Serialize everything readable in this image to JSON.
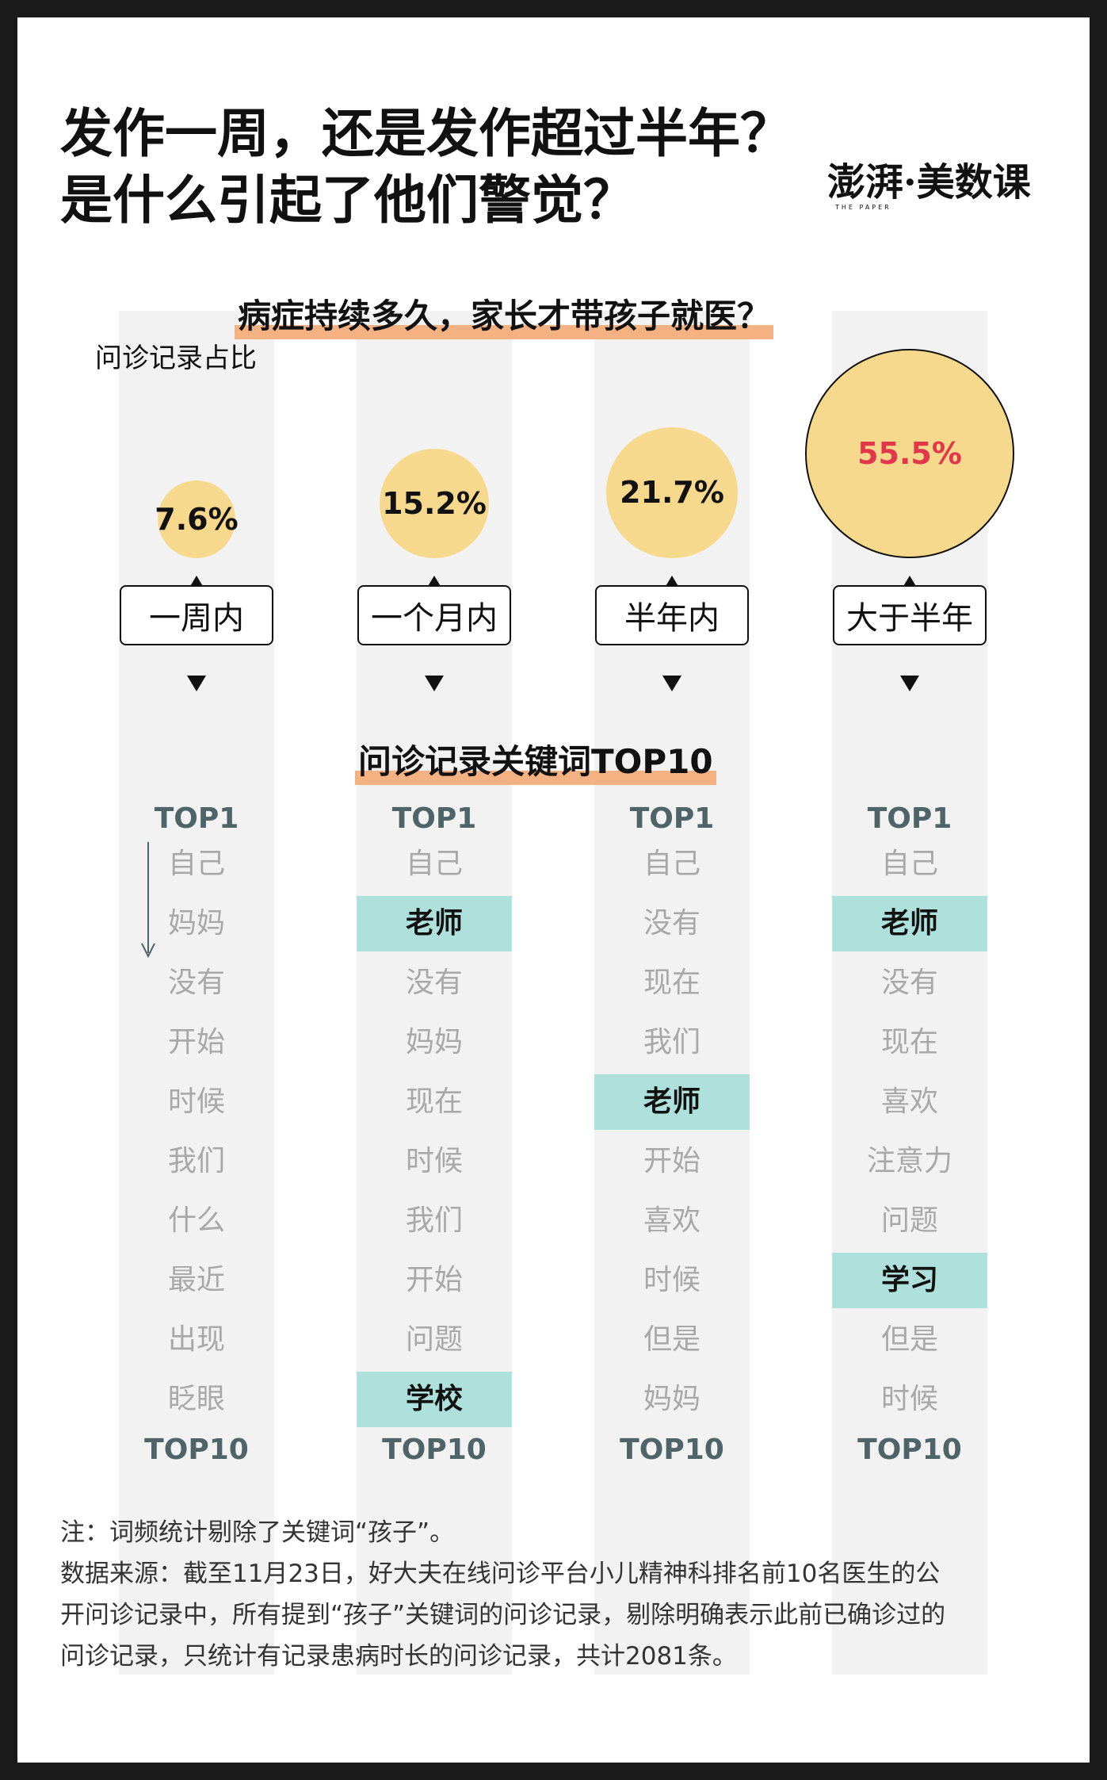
{
  "title": {
    "line1": "发作一周，还是发作超过半年？",
    "line2": "是什么引起了他们警觉？"
  },
  "logo": {
    "main": "澎湃·美数课",
    "sub": "THE PAPER"
  },
  "chart_data": {
    "type": "bubble",
    "title": "病症持续多久，家长才带孩子就医？",
    "ylabel": "问诊记录占比",
    "categories": [
      "一周内",
      "一个月内",
      "半年内",
      "大于半年"
    ],
    "values": [
      7.6,
      15.2,
      21.7,
      55.5
    ],
    "value_labels": [
      "7.6%",
      "15.2%",
      "21.7%",
      "55.5%"
    ],
    "bubble_color": "#f6d98c",
    "highlight_label_color": "#e2374a",
    "keywords_title": "问诊记录关键词TOP10",
    "rank_top_label": "TOP1",
    "rank_bottom_label": "TOP10",
    "keyword_columns": [
      {
        "words": [
          "自己",
          "妈妈",
          "没有",
          "开始",
          "时候",
          "我们",
          "什么",
          "最近",
          "出现",
          "眨眼"
        ],
        "highlight": []
      },
      {
        "words": [
          "自己",
          "老师",
          "没有",
          "妈妈",
          "现在",
          "时候",
          "我们",
          "开始",
          "问题",
          "学校"
        ],
        "highlight": [
          1,
          9
        ]
      },
      {
        "words": [
          "自己",
          "没有",
          "现在",
          "我们",
          "老师",
          "开始",
          "喜欢",
          "时候",
          "但是",
          "妈妈"
        ],
        "highlight": [
          4
        ]
      },
      {
        "words": [
          "自己",
          "老师",
          "没有",
          "现在",
          "喜欢",
          "注意力",
          "问题",
          "学习",
          "但是",
          "时候"
        ],
        "highlight": [
          1,
          7
        ]
      }
    ],
    "highlight_color": "#aee0dc"
  },
  "notes": {
    "line1": "注：词频统计剔除了关键词“孩子”。",
    "line2": "数据来源：截至11月23日，好大夫在线问诊平台小儿精神科排名前10名医生的公",
    "line3": "开问诊记录中，所有提到“孩子”关键词的问诊记录，剔除明确表示此前已确诊过的",
    "line4": "问诊记录，只统计有记录患病时长的问诊记录，共计2081条。"
  }
}
